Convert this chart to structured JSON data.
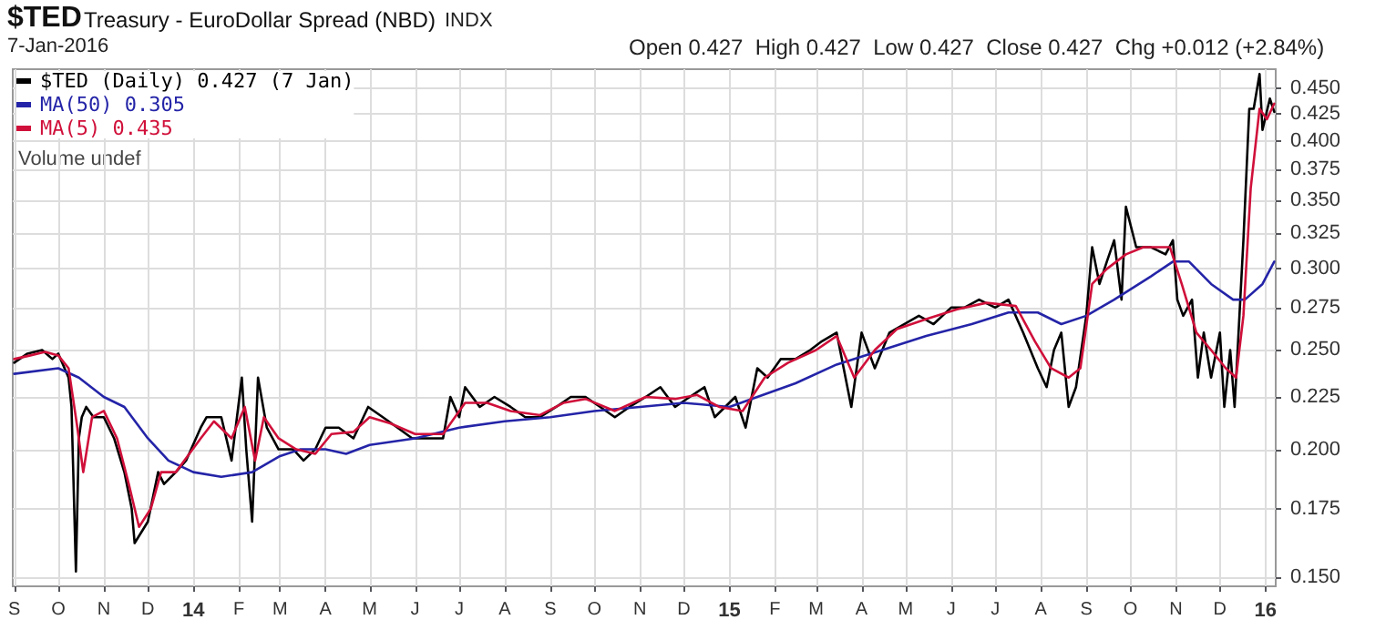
{
  "chart_data": {
    "type": "line",
    "title": "$TED",
    "subtitle": "Treasury - EuroDollar Spread (NBD)",
    "annotations": [
      "INDX",
      "7-Jan-2016",
      "Open 0.427  High 0.427  Low 0.427  Close 0.427  Chg +0.012 (+2.84%)",
      "Volume undef"
    ],
    "log": "y",
    "grid": true,
    "legend": "top left",
    "marker": "none",
    "line_style": "solid",
    "xlim": [
      "2013-08-31",
      "2016-01-08"
    ],
    "ylim": [
      0.147,
      0.47
    ],
    "yticks": [
      {
        "value": 0.15,
        "label": "0.150"
      },
      {
        "value": 0.175,
        "label": "0.175"
      },
      {
        "value": 0.2,
        "label": "0.200"
      },
      {
        "value": 0.225,
        "label": "0.225"
      },
      {
        "value": 0.25,
        "label": "0.250"
      },
      {
        "value": 0.275,
        "label": "0.275"
      },
      {
        "value": 0.3,
        "label": "0.300"
      },
      {
        "value": 0.325,
        "label": "0.325"
      },
      {
        "value": 0.35,
        "label": "0.350"
      },
      {
        "value": 0.375,
        "label": "0.375"
      },
      {
        "value": 0.4,
        "label": "0.400"
      },
      {
        "value": 0.425,
        "label": "0.425"
      },
      {
        "value": 0.45,
        "label": "0.450"
      }
    ],
    "xticks": [
      {
        "value": "2013-09-01",
        "label": "S"
      },
      {
        "value": "2013-10-01",
        "label": "O"
      },
      {
        "value": "2013-11-01",
        "label": "N"
      },
      {
        "value": "2013-12-01",
        "label": "D"
      },
      {
        "value": "2014-01-01",
        "label": "14"
      },
      {
        "value": "2014-02-01",
        "label": "F"
      },
      {
        "value": "2014-03-01",
        "label": "M"
      },
      {
        "value": "2014-04-01",
        "label": "A"
      },
      {
        "value": "2014-05-01",
        "label": "M"
      },
      {
        "value": "2014-06-01",
        "label": "J"
      },
      {
        "value": "2014-07-01",
        "label": "J"
      },
      {
        "value": "2014-08-01",
        "label": "A"
      },
      {
        "value": "2014-09-01",
        "label": "S"
      },
      {
        "value": "2014-10-01",
        "label": "O"
      },
      {
        "value": "2014-11-01",
        "label": "N"
      },
      {
        "value": "2014-12-01",
        "label": "D"
      },
      {
        "value": "2015-01-01",
        "label": "15"
      },
      {
        "value": "2015-02-01",
        "label": "F"
      },
      {
        "value": "2015-03-01",
        "label": "M"
      },
      {
        "value": "2015-04-01",
        "label": "A"
      },
      {
        "value": "2015-05-01",
        "label": "M"
      },
      {
        "value": "2015-06-01",
        "label": "J"
      },
      {
        "value": "2015-07-01",
        "label": "J"
      },
      {
        "value": "2015-08-01",
        "label": "A"
      },
      {
        "value": "2015-09-01",
        "label": "S"
      },
      {
        "value": "2015-10-01",
        "label": "O"
      },
      {
        "value": "2015-11-01",
        "label": "N"
      },
      {
        "value": "2015-12-01",
        "label": "D"
      },
      {
        "value": "2016-01-01",
        "label": "16"
      }
    ],
    "series": [
      {
        "name": "$TED (Daily) 0.427 (7 Jan)",
        "color": "#000000",
        "x": [
          "2013-09-01",
          "2013-09-10",
          "2013-09-20",
          "2013-09-27",
          "2013-10-01",
          "2013-10-08",
          "2013-10-10",
          "2013-10-13",
          "2013-10-15",
          "2013-10-17",
          "2013-10-20",
          "2013-10-25",
          "2013-11-01",
          "2013-11-08",
          "2013-11-15",
          "2013-11-20",
          "2013-11-22",
          "2013-12-01",
          "2013-12-08",
          "2013-12-12",
          "2013-12-20",
          "2013-12-27",
          "2014-01-06",
          "2014-01-10",
          "2014-01-20",
          "2014-01-27",
          "2014-02-03",
          "2014-02-06",
          "2014-02-10",
          "2014-02-14",
          "2014-02-20",
          "2014-02-28",
          "2014-03-10",
          "2014-03-17",
          "2014-03-25",
          "2014-04-01",
          "2014-04-10",
          "2014-04-20",
          "2014-04-30",
          "2014-05-10",
          "2014-05-20",
          "2014-05-30",
          "2014-06-10",
          "2014-06-20",
          "2014-06-25",
          "2014-07-01",
          "2014-07-05",
          "2014-07-15",
          "2014-07-25",
          "2014-08-05",
          "2014-08-15",
          "2014-08-25",
          "2014-09-05",
          "2014-09-15",
          "2014-09-25",
          "2014-10-05",
          "2014-10-15",
          "2014-10-25",
          "2014-11-05",
          "2014-11-15",
          "2014-11-25",
          "2014-12-05",
          "2014-12-15",
          "2014-12-22",
          "2015-01-05",
          "2015-01-12",
          "2015-01-20",
          "2015-01-27",
          "2015-02-05",
          "2015-02-15",
          "2015-02-25",
          "2015-03-05",
          "2015-03-15",
          "2015-03-25",
          "2015-04-01",
          "2015-04-10",
          "2015-04-20",
          "2015-04-30",
          "2015-05-10",
          "2015-05-20",
          "2015-06-01",
          "2015-06-10",
          "2015-06-20",
          "2015-07-01",
          "2015-07-10",
          "2015-07-20",
          "2015-07-30",
          "2015-08-05",
          "2015-08-10",
          "2015-08-15",
          "2015-08-20",
          "2015-08-25",
          "2015-09-01",
          "2015-09-05",
          "2015-09-10",
          "2015-09-15",
          "2015-09-20",
          "2015-09-25",
          "2015-09-28",
          "2015-10-05",
          "2015-10-15",
          "2015-10-25",
          "2015-10-30",
          "2015-11-02",
          "2015-11-06",
          "2015-11-12",
          "2015-11-16",
          "2015-11-20",
          "2015-11-25",
          "2015-12-01",
          "2015-12-04",
          "2015-12-08",
          "2015-12-11",
          "2015-12-14",
          "2015-12-17",
          "2015-12-21",
          "2015-12-24",
          "2015-12-28",
          "2015-12-30",
          "2016-01-04",
          "2016-01-07"
        ],
        "values": [
          0.243,
          0.248,
          0.25,
          0.245,
          0.248,
          0.235,
          0.22,
          0.152,
          0.205,
          0.215,
          0.22,
          0.215,
          0.215,
          0.205,
          0.19,
          0.175,
          0.162,
          0.17,
          0.19,
          0.185,
          0.19,
          0.195,
          0.21,
          0.215,
          0.215,
          0.195,
          0.235,
          0.2,
          0.17,
          0.235,
          0.21,
          0.2,
          0.2,
          0.195,
          0.2,
          0.21,
          0.21,
          0.205,
          0.22,
          0.215,
          0.21,
          0.205,
          0.205,
          0.205,
          0.225,
          0.215,
          0.23,
          0.22,
          0.225,
          0.22,
          0.215,
          0.215,
          0.22,
          0.225,
          0.225,
          0.22,
          0.215,
          0.22,
          0.225,
          0.23,
          0.22,
          0.225,
          0.23,
          0.215,
          0.225,
          0.21,
          0.24,
          0.235,
          0.245,
          0.245,
          0.25,
          0.255,
          0.26,
          0.22,
          0.26,
          0.24,
          0.26,
          0.265,
          0.27,
          0.265,
          0.275,
          0.275,
          0.28,
          0.275,
          0.28,
          0.26,
          0.24,
          0.23,
          0.25,
          0.26,
          0.22,
          0.23,
          0.27,
          0.315,
          0.29,
          0.305,
          0.32,
          0.28,
          0.345,
          0.315,
          0.315,
          0.31,
          0.32,
          0.28,
          0.27,
          0.28,
          0.235,
          0.26,
          0.235,
          0.26,
          0.22,
          0.25,
          0.22,
          0.265,
          0.32,
          0.43,
          0.43,
          0.465,
          0.41,
          0.44,
          0.427
        ]
      },
      {
        "name": "MA(50) 0.305",
        "color": "#2424a8",
        "x": [
          "2013-09-01",
          "2013-10-01",
          "2013-10-15",
          "2013-11-01",
          "2013-11-15",
          "2013-12-01",
          "2013-12-15",
          "2014-01-01",
          "2014-01-20",
          "2014-02-10",
          "2014-03-01",
          "2014-03-15",
          "2014-04-01",
          "2014-04-15",
          "2014-05-01",
          "2014-06-01",
          "2014-07-01",
          "2014-08-01",
          "2014-09-01",
          "2014-10-01",
          "2014-11-01",
          "2014-12-01",
          "2015-01-01",
          "2015-01-20",
          "2015-02-15",
          "2015-03-15",
          "2015-04-15",
          "2015-05-15",
          "2015-06-15",
          "2015-07-10",
          "2015-07-30",
          "2015-08-15",
          "2015-09-01",
          "2015-09-20",
          "2015-10-15",
          "2015-10-30",
          "2015-11-10",
          "2015-11-25",
          "2015-12-10",
          "2015-12-18",
          "2015-12-30",
          "2016-01-07"
        ],
        "values": [
          0.237,
          0.24,
          0.235,
          0.225,
          0.22,
          0.205,
          0.195,
          0.19,
          0.188,
          0.19,
          0.197,
          0.2,
          0.2,
          0.198,
          0.202,
          0.205,
          0.21,
          0.213,
          0.215,
          0.218,
          0.22,
          0.222,
          0.22,
          0.225,
          0.232,
          0.242,
          0.25,
          0.258,
          0.265,
          0.272,
          0.272,
          0.265,
          0.27,
          0.28,
          0.295,
          0.305,
          0.305,
          0.29,
          0.28,
          0.28,
          0.29,
          0.305
        ]
      },
      {
        "name": "MA(5) 0.435",
        "color": "#d0103a",
        "x": [
          "2013-09-01",
          "2013-09-12",
          "2013-09-22",
          "2013-10-01",
          "2013-10-08",
          "2013-10-14",
          "2013-10-18",
          "2013-10-24",
          "2013-11-01",
          "2013-11-10",
          "2013-11-18",
          "2013-11-25",
          "2013-12-03",
          "2013-12-10",
          "2013-12-20",
          "2014-01-06",
          "2014-01-15",
          "2014-01-27",
          "2014-02-05",
          "2014-02-12",
          "2014-02-18",
          "2014-02-28",
          "2014-03-12",
          "2014-03-25",
          "2014-04-05",
          "2014-04-20",
          "2014-05-01",
          "2014-05-15",
          "2014-06-01",
          "2014-06-20",
          "2014-07-05",
          "2014-07-20",
          "2014-08-05",
          "2014-08-25",
          "2014-09-10",
          "2014-09-25",
          "2014-10-15",
          "2014-11-05",
          "2014-11-25",
          "2014-12-10",
          "2014-12-25",
          "2015-01-10",
          "2015-01-25",
          "2015-02-10",
          "2015-03-01",
          "2015-03-15",
          "2015-03-27",
          "2015-04-10",
          "2015-04-25",
          "2015-05-15",
          "2015-06-05",
          "2015-06-25",
          "2015-07-15",
          "2015-07-28",
          "2015-08-08",
          "2015-08-20",
          "2015-08-28",
          "2015-09-05",
          "2015-09-15",
          "2015-09-28",
          "2015-10-10",
          "2015-10-28",
          "2015-11-05",
          "2015-11-15",
          "2015-11-25",
          "2015-12-05",
          "2015-12-12",
          "2015-12-17",
          "2015-12-22",
          "2015-12-28",
          "2016-01-02",
          "2016-01-07"
        ],
        "values": [
          0.245,
          0.247,
          0.249,
          0.247,
          0.24,
          0.21,
          0.19,
          0.215,
          0.218,
          0.205,
          0.185,
          0.168,
          0.175,
          0.19,
          0.19,
          0.205,
          0.213,
          0.205,
          0.22,
          0.195,
          0.215,
          0.205,
          0.2,
          0.198,
          0.207,
          0.208,
          0.215,
          0.212,
          0.207,
          0.207,
          0.222,
          0.222,
          0.218,
          0.216,
          0.222,
          0.224,
          0.218,
          0.225,
          0.224,
          0.226,
          0.22,
          0.218,
          0.235,
          0.243,
          0.25,
          0.258,
          0.235,
          0.25,
          0.262,
          0.268,
          0.274,
          0.278,
          0.276,
          0.255,
          0.24,
          0.235,
          0.24,
          0.29,
          0.3,
          0.31,
          0.315,
          0.315,
          0.29,
          0.26,
          0.25,
          0.24,
          0.235,
          0.27,
          0.36,
          0.43,
          0.42,
          0.435
        ]
      }
    ]
  }
}
